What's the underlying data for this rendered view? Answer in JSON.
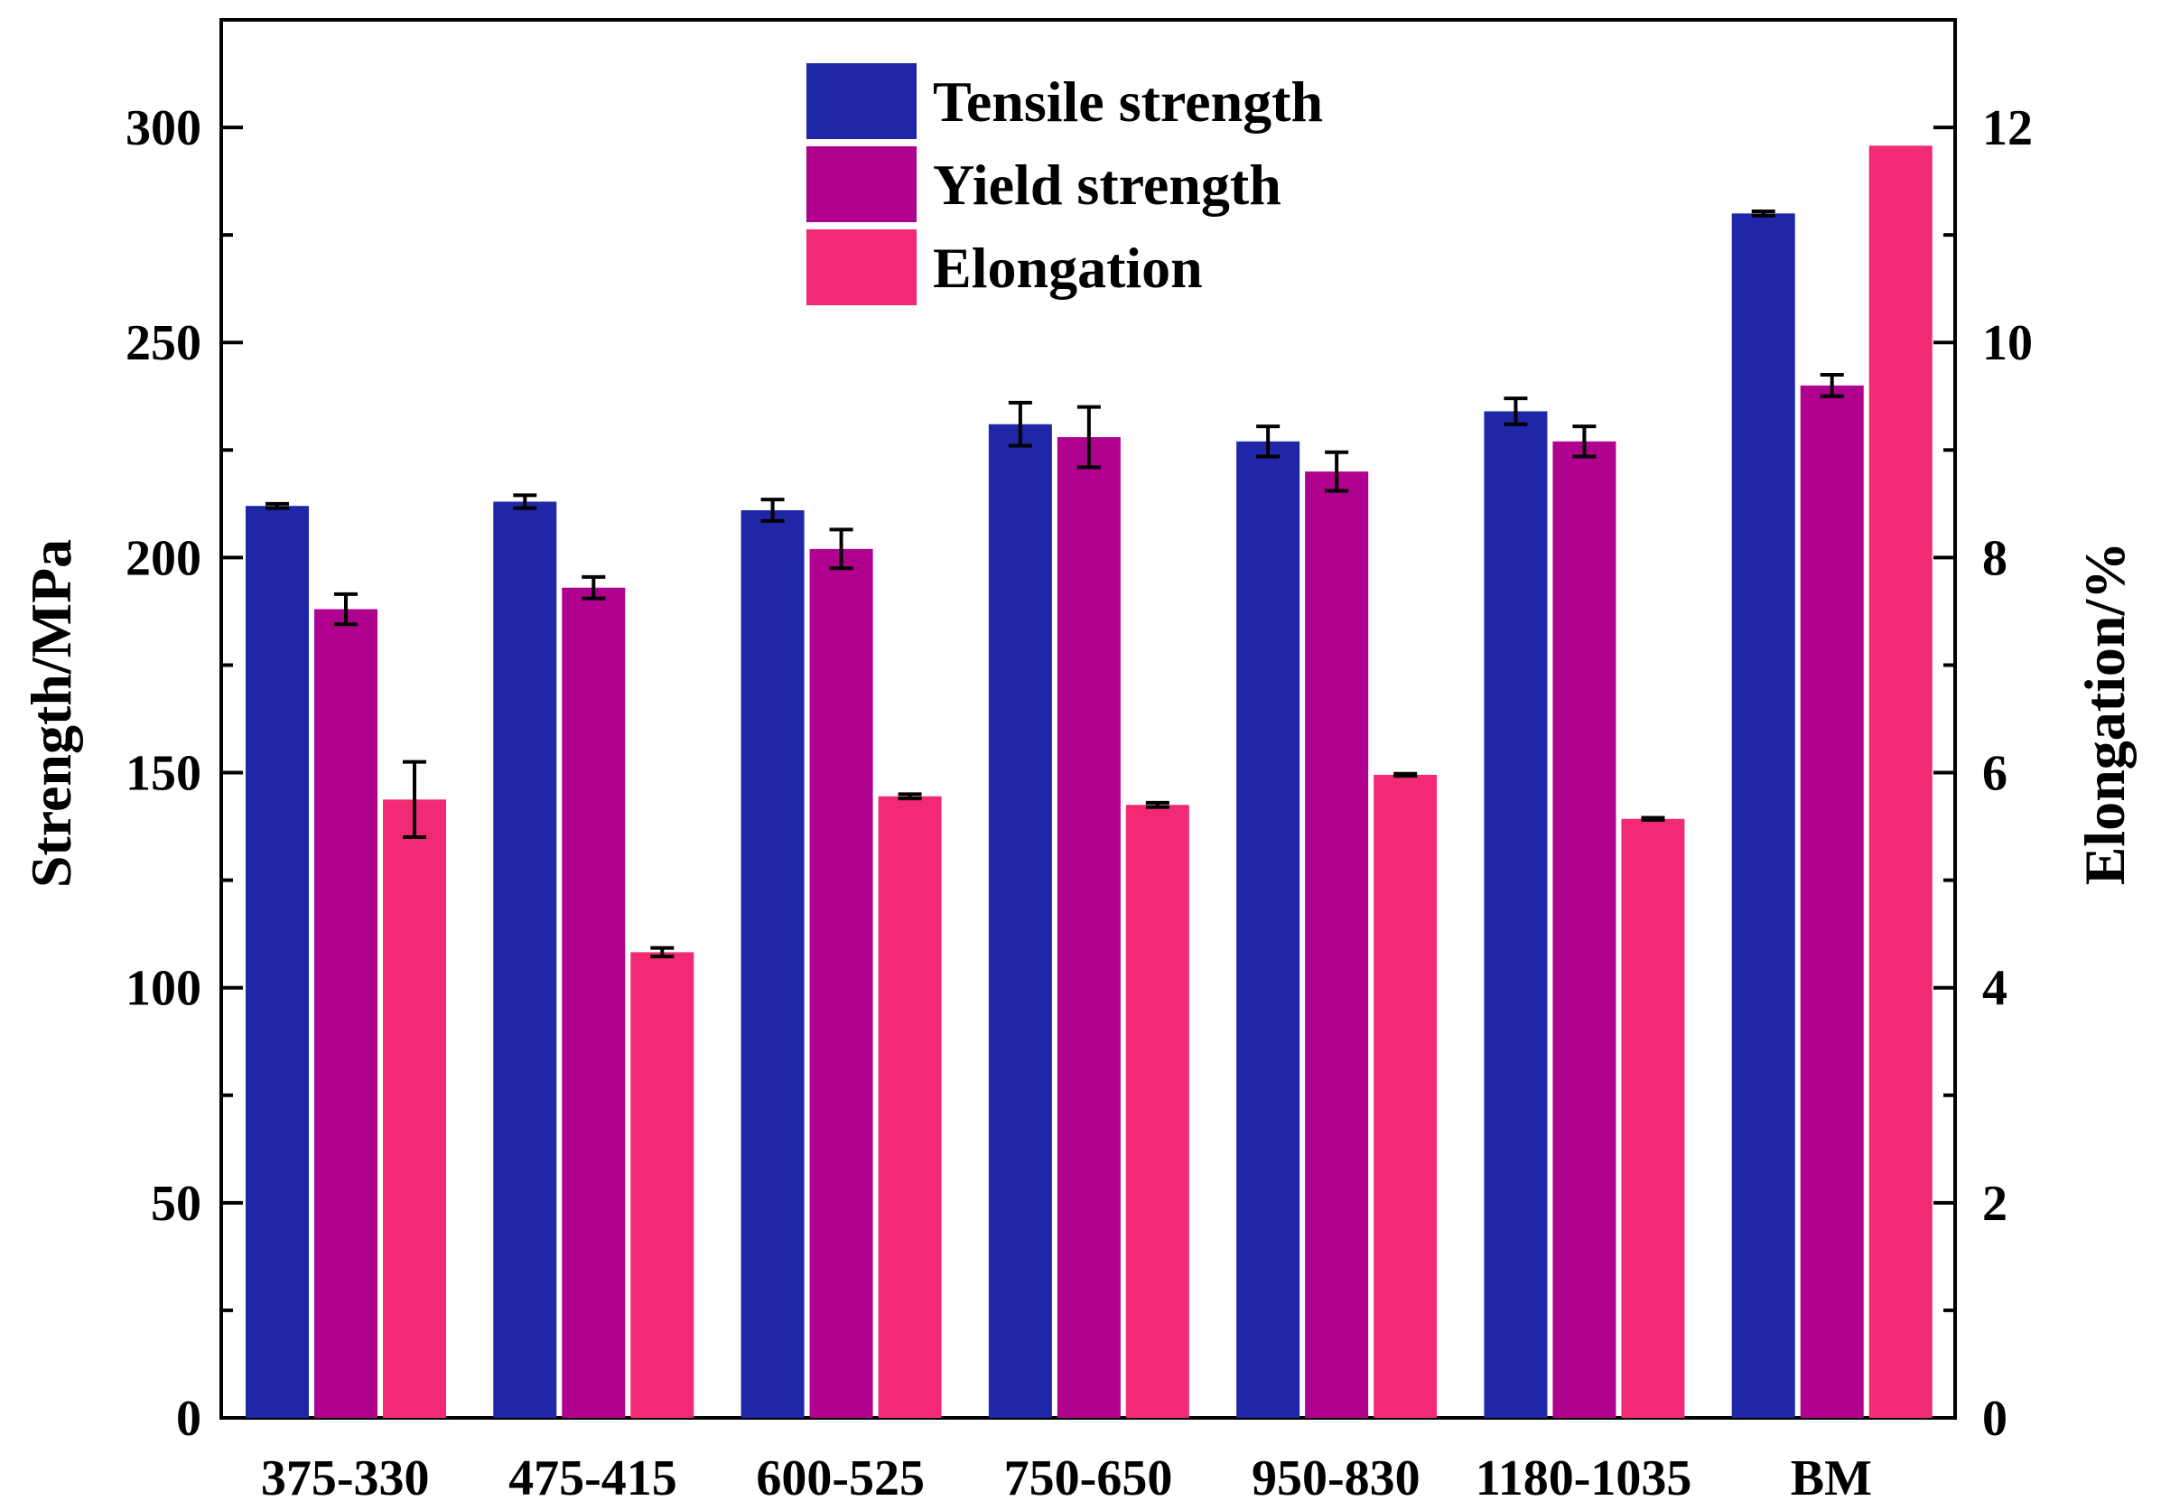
{
  "chart_data": {
    "type": "bar",
    "title": "",
    "xlabel": "",
    "ylabel": "Strength/MPa",
    "y2label": "Elongation/%",
    "ylim": [
      0,
      325
    ],
    "y2lim": [
      0,
      13
    ],
    "yticks": [
      0,
      50,
      100,
      150,
      200,
      250,
      300
    ],
    "y2ticks": [
      0,
      2,
      4,
      6,
      8,
      10,
      12
    ],
    "legend_position": "top-center",
    "categories": [
      "375-330",
      "475-415",
      "600-525",
      "750-650",
      "950-830",
      "1180-1035",
      "BM"
    ],
    "series": [
      {
        "name": "Tensile strength",
        "axis": "left",
        "color": "#1f27a8",
        "values": [
          212,
          213,
          211,
          231,
          227,
          234,
          280
        ],
        "errors": [
          0.5,
          1.5,
          2.5,
          5,
          3.5,
          3,
          0.5
        ]
      },
      {
        "name": "Yield strength",
        "axis": "left",
        "color": "#b0008e",
        "values": [
          188,
          193,
          202,
          228,
          220,
          227,
          240
        ],
        "errors": [
          3.5,
          2.5,
          4.5,
          7,
          4.5,
          3.5,
          2.5
        ]
      },
      {
        "name": "Elongation",
        "axis": "right",
        "color": "#f22974",
        "values": [
          5.75,
          4.33,
          5.78,
          5.7,
          5.98,
          5.57,
          11.83
        ],
        "errors": [
          0.35,
          0.04,
          0.02,
          0.02,
          0.01,
          0.01,
          0
        ]
      }
    ]
  }
}
